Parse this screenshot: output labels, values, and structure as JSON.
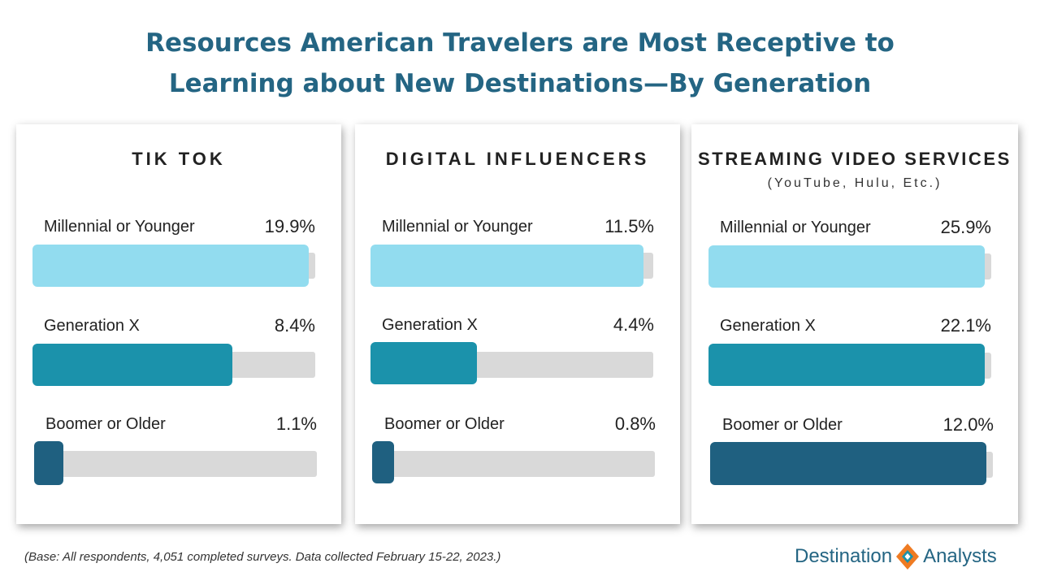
{
  "title_lines": [
    "Resources American Travelers are Most Receptive to",
    "Learning about New Destinations—By Generation"
  ],
  "colors": {
    "title": "#246583",
    "millennial": "#92dcef",
    "genx": "#1b92ab",
    "boomer": "#1f6080",
    "track": "#d9d9d9"
  },
  "chart_data": [
    {
      "type": "bar",
      "title": "TIK TOK",
      "subtitle": "",
      "categories": [
        "Millennial or Younger",
        "Generation X",
        "Boomer or Older"
      ],
      "values": [
        19.9,
        8.4,
        1.1
      ],
      "value_labels": [
        "19.9%",
        "8.4%",
        "1.1%"
      ],
      "xlim": [
        0,
        100
      ]
    },
    {
      "type": "bar",
      "title": "DIGITAL INFLUENCERS",
      "subtitle": "",
      "categories": [
        "Millennial or Younger",
        "Generation X",
        "Boomer or Older"
      ],
      "values": [
        11.5,
        4.4,
        0.8
      ],
      "value_labels": [
        "11.5%",
        "4.4%",
        "0.8%"
      ],
      "xlim": [
        0,
        100
      ]
    },
    {
      "type": "bar",
      "title": "STREAMING VIDEO SERVICES",
      "subtitle": "(YouTube, Hulu, Etc.)",
      "categories": [
        "Millennial or Younger",
        "Generation X",
        "Boomer or Older"
      ],
      "values": [
        25.9,
        22.1,
        12.0
      ],
      "value_labels": [
        "25.9%",
        "22.1%",
        "12.0%"
      ],
      "xlim": [
        0,
        100
      ]
    }
  ],
  "footnote": "(Base: All respondents, 4,051  completed surveys. Data collected February 15-22, 2023.)",
  "logo": {
    "left": "Destination",
    "right": "Analysts",
    "icon": "diamond-logo-icon"
  }
}
